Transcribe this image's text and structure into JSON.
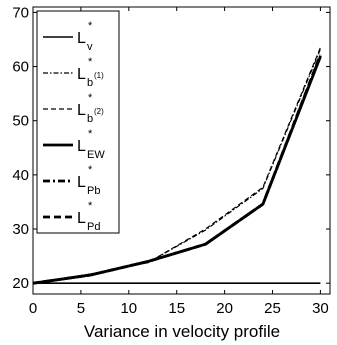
{
  "chart_data": {
    "type": "line",
    "xlabel": "Variance in velocity profile",
    "ylabel": "",
    "title": "",
    "xlim": [
      0,
      31
    ],
    "ylim": [
      18,
      71
    ],
    "xticks": [
      0,
      5,
      10,
      15,
      20,
      25,
      30
    ],
    "yticks": [
      20,
      30,
      40,
      50,
      60,
      70
    ],
    "x": [
      0,
      6,
      12,
      18,
      24,
      30
    ],
    "legend_position": "top-left",
    "grid": false,
    "series": [
      {
        "label_base": "L",
        "label_sub": "v",
        "label_sup": "*",
        "style": "solid",
        "width": 1.6,
        "values": [
          20,
          20,
          20,
          20,
          20,
          20
        ]
      },
      {
        "label_base": "L",
        "label_sub": "b",
        "label_sup": "*",
        "label_sup2": "(1)",
        "style": "dashdot",
        "width": 1.2,
        "values": [
          20,
          21.7,
          23.8,
          29.8,
          37.5,
          63.2
        ]
      },
      {
        "label_base": "L",
        "label_sub": "b",
        "label_sup": "*",
        "label_sup2": "(2)",
        "style": "dashed",
        "width": 1.2,
        "values": [
          20,
          21.7,
          23.8,
          30,
          37.7,
          63.5
        ]
      },
      {
        "label_base": "L",
        "label_sub": "EW",
        "label_sup": "*",
        "style": "solid",
        "width": 2.8,
        "values": [
          20,
          21.5,
          24,
          27.2,
          34.6,
          61.8
        ]
      },
      {
        "label_base": "L",
        "label_sub": "Pb",
        "label_sup": "*",
        "style": "dashdot",
        "width": 2.8,
        "values": [
          20,
          21.5,
          24,
          27.2,
          34.6,
          62.0
        ]
      },
      {
        "label_base": "L",
        "label_sub": "Pd",
        "label_sup": "*",
        "style": "dashed",
        "width": 2.8,
        "values": [
          20,
          21.5,
          24,
          27.2,
          34.6,
          62.2
        ]
      }
    ]
  }
}
